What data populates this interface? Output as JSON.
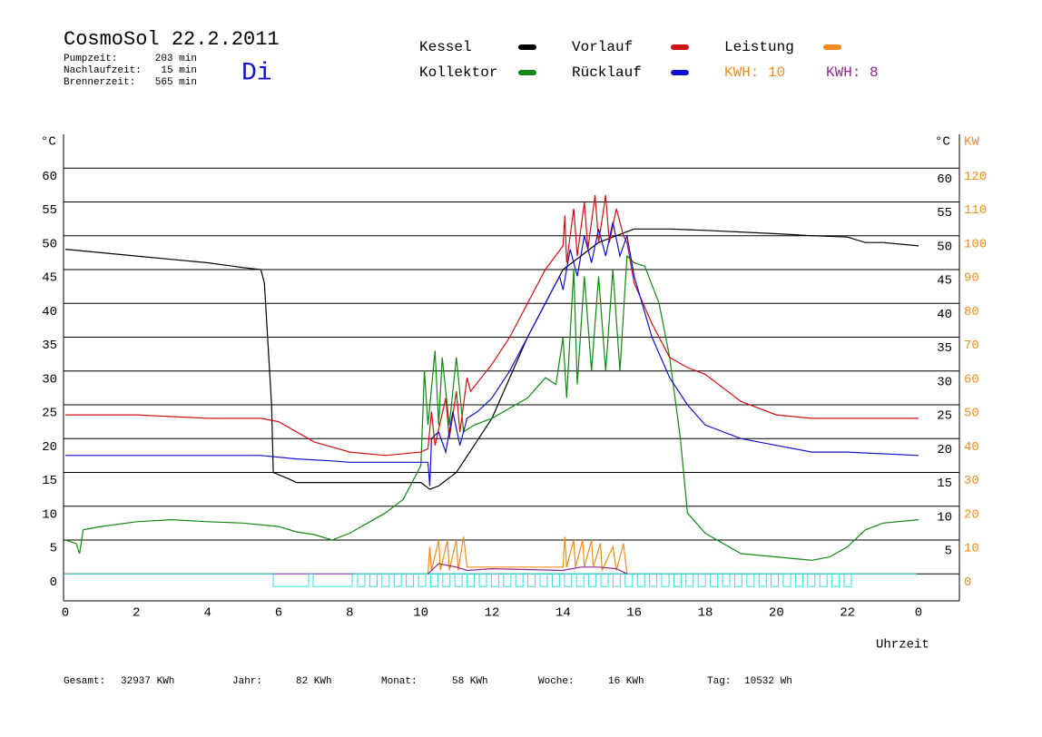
{
  "chart_data": {
    "type": "line",
    "title": "CosmoSol 22.2.2011",
    "weekday": "Di",
    "info": [
      {
        "label": "Pumpzeit:",
        "value": "203 min"
      },
      {
        "label": "Nachlaufzeit:",
        "value": "15 min"
      },
      {
        "label": "Brennerzeit:",
        "value": "565 min"
      }
    ],
    "kwh_labels": [
      {
        "text": "KWH: 10",
        "color": "#f08c1e"
      },
      {
        "text": "KWH: 8",
        "color": "#8c288c"
      }
    ],
    "y_label": "°C",
    "y2_label": "KW",
    "y_right_label": "°C",
    "x_label": "Uhrzeit",
    "xlim": [
      0,
      24
    ],
    "xticks": [
      0,
      2,
      4,
      6,
      8,
      10,
      12,
      14,
      16,
      18,
      20,
      22,
      {
        "value": 24,
        "label": "0"
      }
    ],
    "ylim": [
      -4,
      65
    ],
    "yticks": [
      0,
      5,
      10,
      15,
      20,
      25,
      30,
      35,
      40,
      45,
      50,
      55,
      60
    ],
    "y_right_ticks": [
      5,
      10,
      15,
      20,
      25,
      30,
      35,
      40,
      45,
      50,
      55,
      60
    ],
    "y2lim": [
      -8,
      130
    ],
    "y2ticks": [
      0,
      10,
      20,
      30,
      40,
      50,
      60,
      70,
      80,
      90,
      100,
      110,
      120
    ],
    "grid": true,
    "series": [
      {
        "name": "Kessel",
        "color": "#000000",
        "x": [
          0,
          1,
          2,
          3,
          4,
          5,
          5.5,
          5.6,
          5.8,
          5.85,
          6.3,
          6.5,
          8,
          10,
          10.25,
          10.5,
          11,
          11.5,
          12,
          12.5,
          13,
          13.5,
          14,
          14.5,
          15,
          15.5,
          16,
          17,
          18,
          20,
          21,
          22,
          22.5,
          23,
          24
        ],
        "values": [
          48,
          47.5,
          47,
          46.5,
          46,
          45.3,
          45,
          43,
          25,
          15,
          14,
          13.5,
          13.5,
          13.5,
          12.5,
          13,
          15,
          19,
          23,
          29,
          35,
          40,
          45,
          47,
          49,
          50,
          51,
          51,
          50.8,
          50.3,
          50,
          49.8,
          49,
          49,
          48.5
        ]
      },
      {
        "name": "Kollektor",
        "color": "#118811",
        "x": [
          0,
          0.3,
          0.4,
          0.5,
          1,
          2,
          3,
          4,
          5,
          6,
          6.5,
          7,
          7.5,
          8,
          8.5,
          9,
          9.5,
          10,
          10.1,
          10.2,
          10.4,
          10.5,
          10.6,
          10.8,
          11,
          11.2,
          11.5,
          12,
          13,
          13.5,
          13.8,
          14,
          14.1,
          14.3,
          14.4,
          14.6,
          14.8,
          15,
          15.2,
          15.4,
          15.6,
          15.8,
          16,
          16.3,
          16.7,
          17,
          17.3,
          17.5,
          18,
          19,
          20,
          21,
          21.5,
          22,
          22.5,
          23,
          24
        ],
        "values": [
          5,
          4.5,
          3,
          6.5,
          7,
          7.7,
          8,
          7.7,
          7.5,
          7,
          6.2,
          5.8,
          5,
          6,
          7.5,
          9,
          11,
          16,
          30,
          22,
          33,
          22,
          32,
          22,
          32,
          21,
          22,
          23,
          26,
          29,
          28,
          35,
          26,
          45,
          28,
          44,
          30,
          44,
          30,
          45,
          30,
          47,
          46,
          45.5,
          40,
          32,
          20,
          9,
          6,
          3,
          2.5,
          2,
          2.5,
          4,
          6.5,
          7.5,
          8
        ]
      },
      {
        "name": "Vorlauf",
        "color": "#cc1111",
        "x": [
          0,
          2,
          4,
          5.5,
          6,
          6.5,
          7,
          8,
          9,
          10,
          10.2,
          10.3,
          10.4,
          10.7,
          10.8,
          11,
          11.1,
          11.3,
          11.4,
          12,
          12.5,
          13,
          13.5,
          14,
          14.05,
          14.1,
          14.3,
          14.4,
          14.6,
          14.7,
          14.9,
          15,
          15.2,
          15.3,
          15.5,
          15.7,
          15.8,
          16,
          16.5,
          17,
          17.5,
          18,
          19,
          20,
          21,
          22,
          23,
          24
        ],
        "values": [
          23.5,
          23.5,
          23,
          23,
          22.5,
          21,
          19.5,
          18,
          17.5,
          18,
          18.5,
          24,
          19,
          26,
          20,
          27,
          21,
          29,
          27,
          31,
          35,
          40,
          45,
          48.5,
          53,
          46,
          54,
          47,
          55,
          48,
          56,
          49,
          56,
          49,
          54,
          50,
          49,
          43,
          37,
          32,
          30.5,
          29.5,
          25.5,
          23.5,
          23,
          23,
          23,
          23
        ]
      },
      {
        "name": "Rücklauf",
        "color": "#1111cc",
        "x": [
          0,
          4,
          5.5,
          6.5,
          7.5,
          8,
          10.2,
          10.25,
          10.3,
          10.5,
          10.7,
          10.9,
          11.1,
          11.3,
          11.6,
          12,
          12.5,
          13,
          13.5,
          13.9,
          14,
          14.2,
          14.4,
          14.6,
          14.8,
          15,
          15.2,
          15.4,
          15.6,
          15.8,
          16,
          16.5,
          17,
          17.5,
          18,
          19,
          20,
          21,
          22,
          24
        ],
        "values": [
          17.5,
          17.5,
          17.5,
          17,
          16.7,
          16.5,
          16.5,
          13,
          20,
          21,
          18,
          24,
          19,
          23,
          24,
          26,
          30,
          35,
          40,
          44,
          42,
          48,
          44,
          50,
          46,
          51,
          47,
          52,
          47,
          50,
          44,
          35,
          29,
          25,
          22,
          20,
          19,
          18,
          18,
          17.5
        ]
      },
      {
        "name": "Leistung",
        "color": "#f08c1e",
        "axis": "y2",
        "x": [
          10.2,
          10.25,
          10.3,
          10.5,
          10.55,
          10.75,
          10.8,
          11,
          11.05,
          11.2,
          11.3,
          12,
          13,
          14,
          14.05,
          14.1,
          14.3,
          14.35,
          14.55,
          14.6,
          14.8,
          14.85,
          15.05,
          15.1,
          15.4,
          15.5,
          15.7,
          15.8
        ],
        "values": [
          0,
          8,
          1,
          10,
          1,
          10,
          1,
          10,
          1,
          11,
          2,
          2,
          2,
          2,
          11,
          2,
          10,
          2,
          10,
          2,
          10,
          2,
          9,
          1,
          8,
          1,
          9,
          0
        ]
      },
      {
        "color": "#8c288c",
        "axis": "y2",
        "x": [
          10.2,
          10.5,
          11,
          11.3,
          12,
          14,
          14.5,
          15,
          15.5,
          15.8
        ],
        "values": [
          0,
          3,
          2,
          1,
          1.5,
          1,
          2,
          2,
          1.5,
          0
        ]
      }
    ],
    "footer": [
      {
        "label": "Gesamt:",
        "value": "32937 KWh"
      },
      {
        "label": "Jahr:",
        "value": "82 KWh"
      },
      {
        "label": "Monat:",
        "value": "58 KWh"
      },
      {
        "label": "Woche:",
        "value": "16 KWh"
      },
      {
        "label": "Tag:",
        "value": "10532 Wh"
      }
    ]
  }
}
